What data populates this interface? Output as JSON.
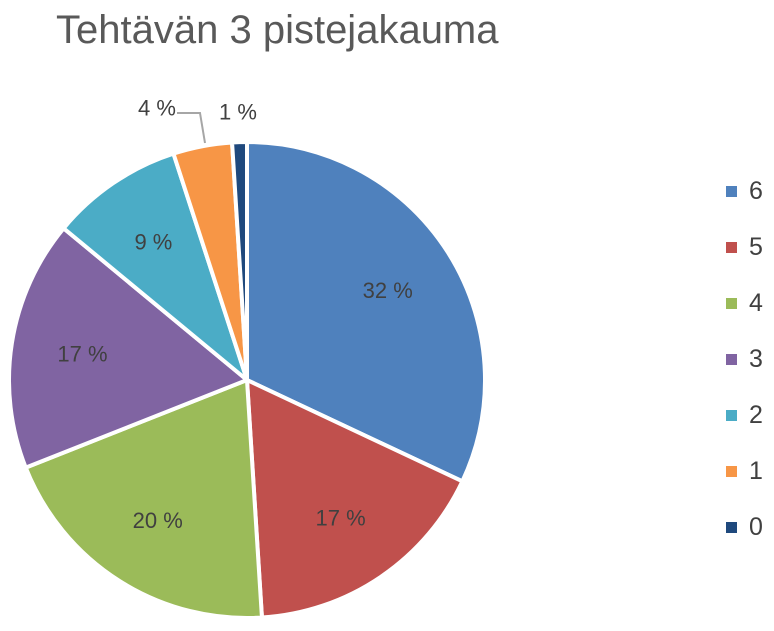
{
  "chart_data": {
    "type": "pie",
    "title": "Tehtävän 3 pistejakauma",
    "legend_position": "right",
    "slices": [
      {
        "category": "6",
        "value": 32,
        "label": "32 %",
        "color": "#4F81BD"
      },
      {
        "category": "5",
        "value": 17,
        "label": "17 %",
        "color": "#C0504D"
      },
      {
        "category": "4",
        "value": 20,
        "label": "20 %",
        "color": "#9BBB59"
      },
      {
        "category": "3",
        "value": 17,
        "label": "17 %",
        "color": "#8064A2"
      },
      {
        "category": "2",
        "value": 9,
        "label": "9 %",
        "color": "#4BACC6"
      },
      {
        "category": "1",
        "value": 4,
        "label": "4 %",
        "color": "#F79646"
      },
      {
        "category": "0",
        "value": 1,
        "label": "1 %",
        "color": "#1F497D"
      }
    ]
  }
}
